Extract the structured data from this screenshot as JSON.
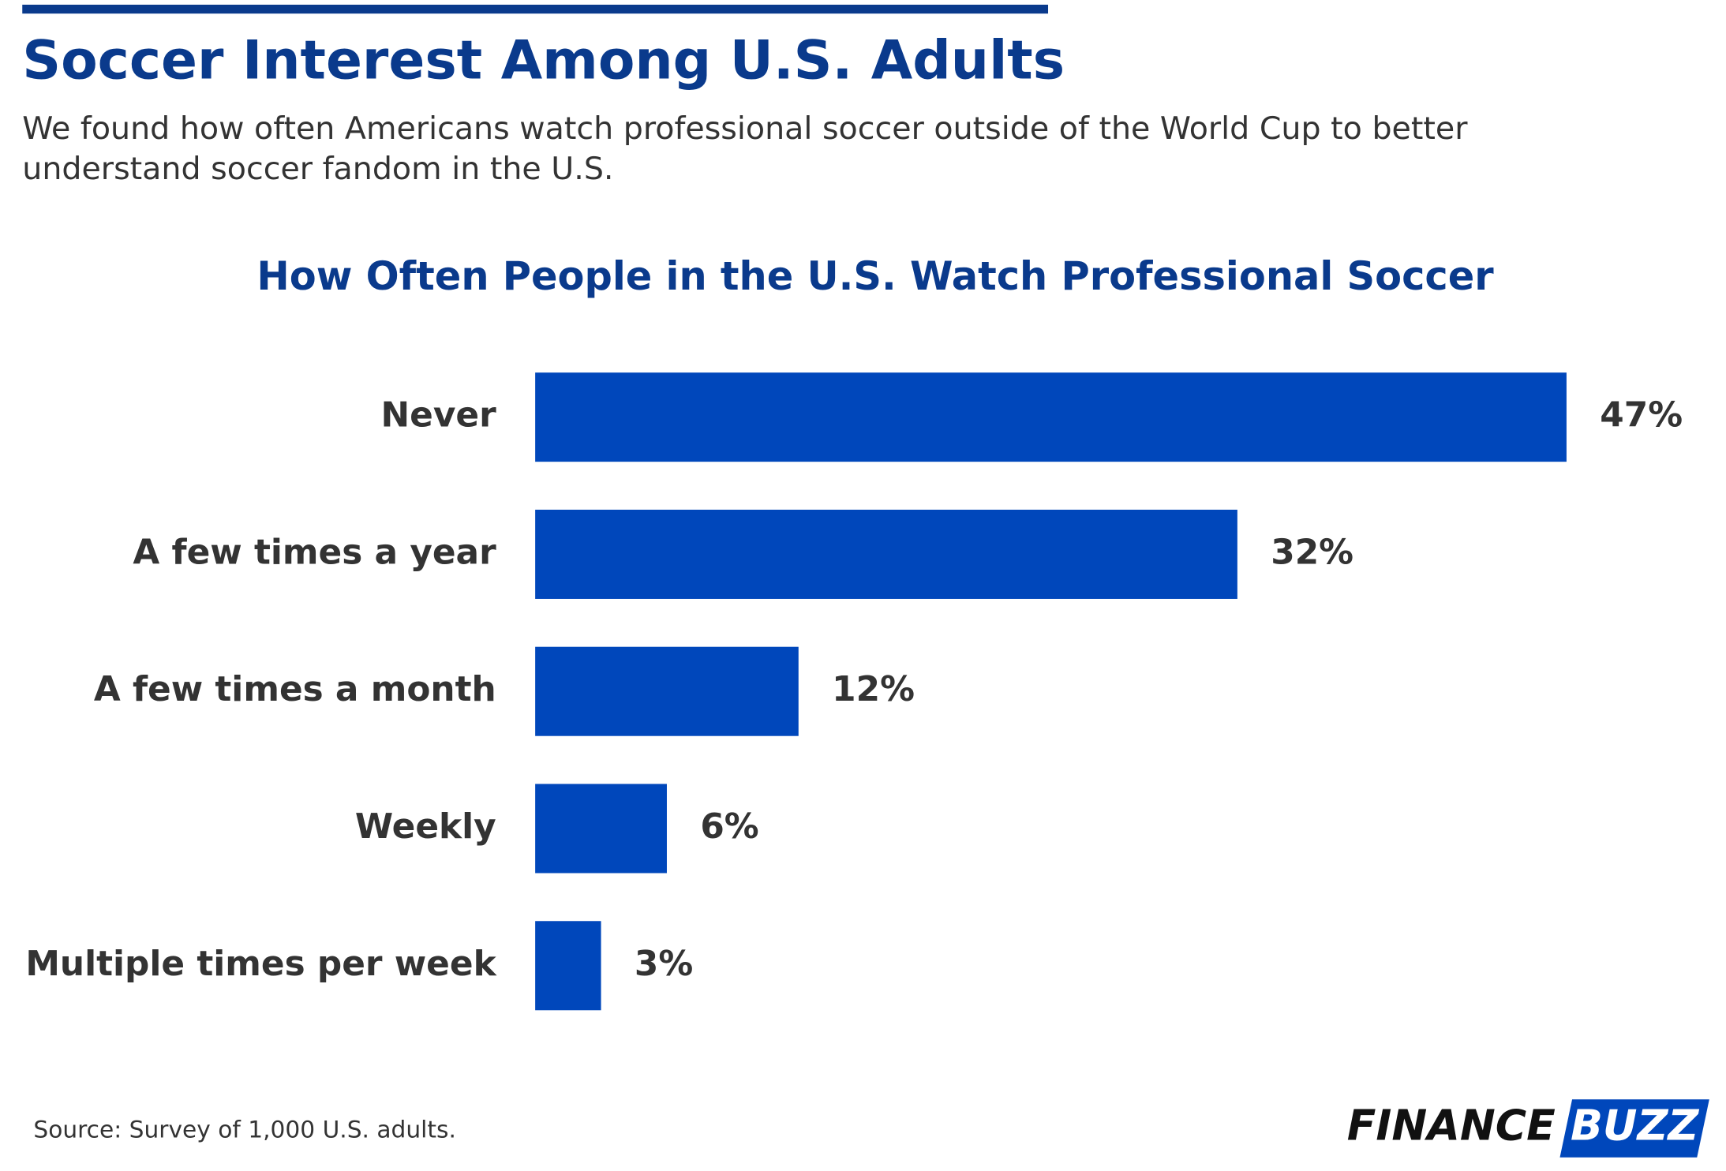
{
  "chart_data": {
    "type": "bar",
    "orientation": "horizontal",
    "title": "Soccer Interest Among U.S. Adults",
    "subtitle": [
      "We found how often Americans watch professional soccer outside of the World Cup to better",
      "understand soccer fandom in the U.S."
    ],
    "chart_title": "How Often People in the U.S. Watch Professional Soccer",
    "categories": [
      "Never",
      "A few times a year",
      "A few times a month",
      "Weekly",
      "Multiple times per week"
    ],
    "values": [
      47,
      32,
      12,
      6,
      3
    ],
    "value_labels": [
      "47%",
      "32%",
      "12%",
      "6%",
      "3%"
    ],
    "color": "#0047bb",
    "source": "Source: Survey of 1,000 U.S. adults.",
    "brand": [
      "FINANCE",
      "BUZZ"
    ]
  }
}
